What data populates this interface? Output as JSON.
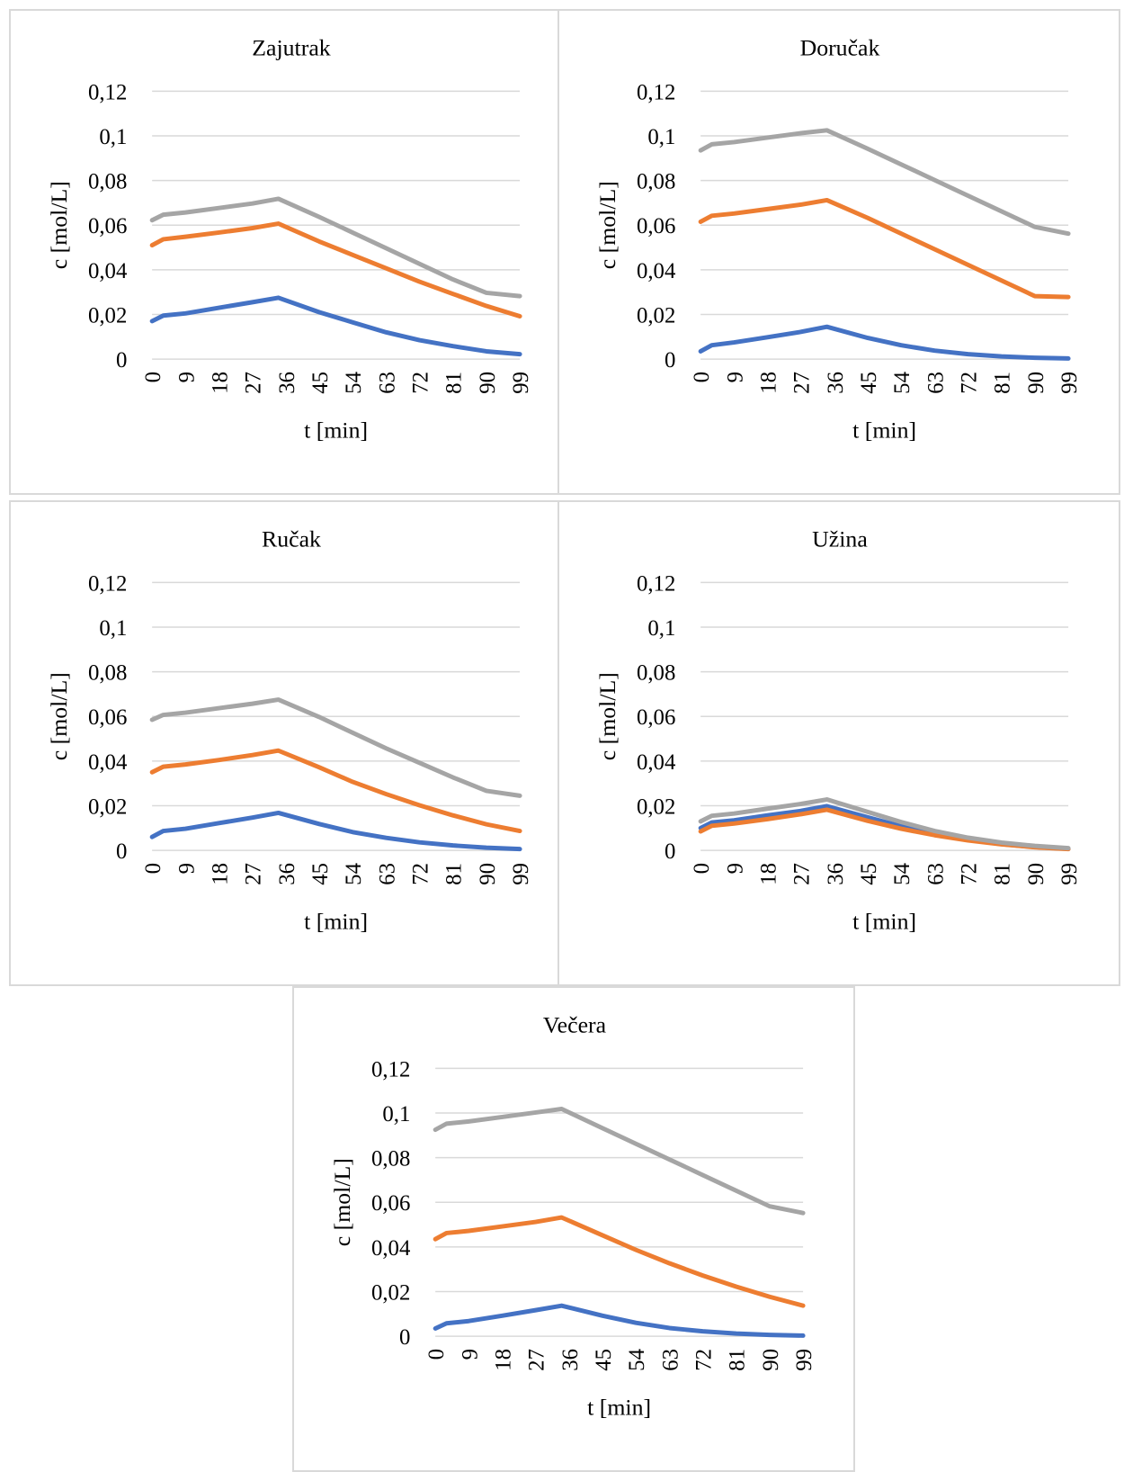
{
  "chart_data": [
    {
      "type": "line",
      "title": "Zajutrak",
      "xlabel": "t [min]",
      "ylabel": "c [mol/L]",
      "ylim": [
        0,
        0.12
      ],
      "yticks": [
        "0",
        "0,02",
        "0,04",
        "0,06",
        "0,08",
        "0,1",
        "0,12"
      ],
      "xticks": [
        "0",
        "9",
        "18",
        "27",
        "36",
        "45",
        "54",
        "63",
        "72",
        "81",
        "90",
        "99"
      ],
      "grid": true,
      "legend": "none",
      "series": [
        {
          "color": "#4472c4",
          "points": [
            [
              0,
              0.017
            ],
            [
              3,
              0.0195
            ],
            [
              9,
              0.0205
            ],
            [
              18,
              0.023
            ],
            [
              27,
              0.0255
            ],
            [
              34,
              0.0275
            ],
            [
              45,
              0.021
            ],
            [
              54,
              0.0165
            ],
            [
              63,
              0.012
            ],
            [
              72,
              0.0085
            ],
            [
              81,
              0.0058
            ],
            [
              90,
              0.0035
            ],
            [
              99,
              0.0022
            ]
          ]
        },
        {
          "color": "#ed7d31",
          "points": [
            [
              0,
              0.051
            ],
            [
              3,
              0.0537
            ],
            [
              9,
              0.0548
            ],
            [
              18,
              0.0567
            ],
            [
              27,
              0.0587
            ],
            [
              34,
              0.0607
            ],
            [
              45,
              0.0527
            ],
            [
              54,
              0.0467
            ],
            [
              63,
              0.0407
            ],
            [
              72,
              0.0347
            ],
            [
              81,
              0.0292
            ],
            [
              90,
              0.0238
            ],
            [
              99,
              0.0192
            ]
          ]
        },
        {
          "color": "#a5a5a5",
          "points": [
            [
              0,
              0.0622
            ],
            [
              3,
              0.0647
            ],
            [
              9,
              0.0657
            ],
            [
              18,
              0.0677
            ],
            [
              27,
              0.0697
            ],
            [
              34,
              0.0718
            ],
            [
              45,
              0.0637
            ],
            [
              54,
              0.0567
            ],
            [
              63,
              0.0497
            ],
            [
              72,
              0.0427
            ],
            [
              81,
              0.0357
            ],
            [
              90,
              0.0297
            ],
            [
              99,
              0.0282
            ]
          ]
        }
      ]
    },
    {
      "type": "line",
      "title": "Doručak",
      "xlabel": "t [min]",
      "ylabel": "c [mol/L]",
      "ylim": [
        0,
        0.12
      ],
      "yticks": [
        "0",
        "0,02",
        "0,04",
        "0,06",
        "0,08",
        "0,1",
        "0,12"
      ],
      "xticks": [
        "0",
        "9",
        "18",
        "27",
        "36",
        "45",
        "54",
        "63",
        "72",
        "81",
        "90",
        "99"
      ],
      "grid": true,
      "legend": "none",
      "series": [
        {
          "color": "#4472c4",
          "points": [
            [
              0,
              0.0035
            ],
            [
              3,
              0.0062
            ],
            [
              9,
              0.0075
            ],
            [
              18,
              0.0098
            ],
            [
              27,
              0.0122
            ],
            [
              34,
              0.0145
            ],
            [
              45,
              0.0095
            ],
            [
              54,
              0.0062
            ],
            [
              63,
              0.0038
            ],
            [
              72,
              0.0022
            ],
            [
              81,
              0.0012
            ],
            [
              90,
              0.0006
            ],
            [
              99,
              0.0003
            ]
          ]
        },
        {
          "color": "#ed7d31",
          "points": [
            [
              0,
              0.0615
            ],
            [
              3,
              0.0642
            ],
            [
              9,
              0.0652
            ],
            [
              18,
              0.0672
            ],
            [
              27,
              0.0692
            ],
            [
              34,
              0.0712
            ],
            [
              45,
              0.0632
            ],
            [
              54,
              0.0562
            ],
            [
              63,
              0.0492
            ],
            [
              72,
              0.0422
            ],
            [
              81,
              0.0352
            ],
            [
              90,
              0.0282
            ],
            [
              99,
              0.0278
            ]
          ]
        },
        {
          "color": "#a5a5a5",
          "points": [
            [
              0,
              0.0935
            ],
            [
              3,
              0.0962
            ],
            [
              9,
              0.0972
            ],
            [
              18,
              0.0992
            ],
            [
              27,
              0.1012
            ],
            [
              34,
              0.1025
            ],
            [
              45,
              0.0942
            ],
            [
              54,
              0.0872
            ],
            [
              63,
              0.0802
            ],
            [
              72,
              0.0732
            ],
            [
              81,
              0.0662
            ],
            [
              90,
              0.0592
            ],
            [
              99,
              0.0562
            ]
          ]
        }
      ]
    },
    {
      "type": "line",
      "title": "Ručak",
      "xlabel": "t [min]",
      "ylabel": "c [mol/L]",
      "ylim": [
        0,
        0.12
      ],
      "yticks": [
        "0",
        "0,02",
        "0,04",
        "0,06",
        "0,08",
        "0,1",
        "0,12"
      ],
      "xticks": [
        "0",
        "9",
        "18",
        "27",
        "36",
        "45",
        "54",
        "63",
        "72",
        "81",
        "90",
        "99"
      ],
      "grid": true,
      "legend": "none",
      "series": [
        {
          "color": "#4472c4",
          "points": [
            [
              0,
              0.006
            ],
            [
              3,
              0.0087
            ],
            [
              9,
              0.0097
            ],
            [
              18,
              0.0122
            ],
            [
              27,
              0.0147
            ],
            [
              34,
              0.0168
            ],
            [
              45,
              0.0118
            ],
            [
              54,
              0.0082
            ],
            [
              63,
              0.0056
            ],
            [
              72,
              0.0036
            ],
            [
              81,
              0.0022
            ],
            [
              90,
              0.0012
            ],
            [
              99,
              0.0006
            ]
          ]
        },
        {
          "color": "#ed7d31",
          "points": [
            [
              0,
              0.035
            ],
            [
              3,
              0.0375
            ],
            [
              9,
              0.0385
            ],
            [
              18,
              0.0405
            ],
            [
              27,
              0.0427
            ],
            [
              34,
              0.0447
            ],
            [
              45,
              0.0372
            ],
            [
              54,
              0.0307
            ],
            [
              63,
              0.0252
            ],
            [
              72,
              0.0202
            ],
            [
              81,
              0.0157
            ],
            [
              90,
              0.0117
            ],
            [
              99,
              0.0087
            ]
          ]
        },
        {
          "color": "#a5a5a5",
          "points": [
            [
              0,
              0.0585
            ],
            [
              3,
              0.0607
            ],
            [
              9,
              0.0617
            ],
            [
              18,
              0.0637
            ],
            [
              27,
              0.0657
            ],
            [
              34,
              0.0675
            ],
            [
              45,
              0.0597
            ],
            [
              54,
              0.0527
            ],
            [
              63,
              0.0457
            ],
            [
              72,
              0.0392
            ],
            [
              81,
              0.0327
            ],
            [
              90,
              0.0267
            ],
            [
              99,
              0.0245
            ]
          ]
        }
      ]
    },
    {
      "type": "line",
      "title": "Užina",
      "xlabel": "t [min]",
      "ylabel": "c [mol/L]",
      "ylim": [
        0,
        0.12
      ],
      "yticks": [
        "0",
        "0,02",
        "0,04",
        "0,06",
        "0,08",
        "0,1",
        "0,12"
      ],
      "xticks": [
        "0",
        "9",
        "18",
        "27",
        "36",
        "45",
        "54",
        "63",
        "72",
        "81",
        "90",
        "99"
      ],
      "grid": true,
      "legend": "none",
      "series": [
        {
          "color": "#4472c4",
          "points": [
            [
              0,
              0.01
            ],
            [
              3,
              0.0125
            ],
            [
              9,
              0.0135
            ],
            [
              18,
              0.0157
            ],
            [
              27,
              0.0177
            ],
            [
              34,
              0.0198
            ],
            [
              45,
              0.0148
            ],
            [
              54,
              0.0108
            ],
            [
              63,
              0.0074
            ],
            [
              72,
              0.0048
            ],
            [
              81,
              0.0028
            ],
            [
              90,
              0.0015
            ],
            [
              99,
              0.0007
            ]
          ]
        },
        {
          "color": "#ed7d31",
          "points": [
            [
              0,
              0.0085
            ],
            [
              3,
              0.011
            ],
            [
              9,
              0.012
            ],
            [
              18,
              0.014
            ],
            [
              27,
              0.0162
            ],
            [
              34,
              0.0182
            ],
            [
              45,
              0.0132
            ],
            [
              54,
              0.0097
            ],
            [
              63,
              0.0068
            ],
            [
              72,
              0.0045
            ],
            [
              81,
              0.0027
            ],
            [
              90,
              0.0014
            ],
            [
              99,
              0.0006
            ]
          ]
        },
        {
          "color": "#a5a5a5",
          "points": [
            [
              0,
              0.013
            ],
            [
              3,
              0.0155
            ],
            [
              9,
              0.0165
            ],
            [
              18,
              0.0187
            ],
            [
              27,
              0.0208
            ],
            [
              34,
              0.0228
            ],
            [
              45,
              0.0172
            ],
            [
              54,
              0.0127
            ],
            [
              63,
              0.0087
            ],
            [
              72,
              0.0057
            ],
            [
              81,
              0.0035
            ],
            [
              90,
              0.002
            ],
            [
              99,
              0.001
            ]
          ]
        }
      ]
    },
    {
      "type": "line",
      "title": "Večera",
      "xlabel": "t [min]",
      "ylabel": "c [mol/L]",
      "ylim": [
        0,
        0.12
      ],
      "yticks": [
        "0",
        "0,02",
        "0,04",
        "0,06",
        "0,08",
        "0,1",
        "0,12"
      ],
      "xticks": [
        "0",
        "9",
        "18",
        "27",
        "36",
        "45",
        "54",
        "63",
        "72",
        "81",
        "90",
        "99"
      ],
      "grid": true,
      "legend": "none",
      "series": [
        {
          "color": "#4472c4",
          "points": [
            [
              0,
              0.0035
            ],
            [
              3,
              0.0058
            ],
            [
              9,
              0.0068
            ],
            [
              18,
              0.0092
            ],
            [
              27,
              0.0117
            ],
            [
              34,
              0.0137
            ],
            [
              45,
              0.0092
            ],
            [
              54,
              0.006
            ],
            [
              63,
              0.0037
            ],
            [
              72,
              0.0022
            ],
            [
              81,
              0.0012
            ],
            [
              90,
              0.0006
            ],
            [
              99,
              0.0003
            ]
          ]
        },
        {
          "color": "#ed7d31",
          "points": [
            [
              0,
              0.0435
            ],
            [
              3,
              0.0462
            ],
            [
              9,
              0.0472
            ],
            [
              18,
              0.0492
            ],
            [
              27,
              0.0512
            ],
            [
              34,
              0.0532
            ],
            [
              45,
              0.0452
            ],
            [
              54,
              0.0387
            ],
            [
              63,
              0.0327
            ],
            [
              72,
              0.0272
            ],
            [
              81,
              0.0222
            ],
            [
              90,
              0.0177
            ],
            [
              99,
              0.0137
            ]
          ]
        },
        {
          "color": "#a5a5a5",
          "points": [
            [
              0,
              0.0925
            ],
            [
              3,
              0.0952
            ],
            [
              9,
              0.0962
            ],
            [
              18,
              0.0982
            ],
            [
              27,
              0.1002
            ],
            [
              34,
              0.1018
            ],
            [
              45,
              0.0932
            ],
            [
              54,
              0.0862
            ],
            [
              63,
              0.0792
            ],
            [
              72,
              0.0722
            ],
            [
              81,
              0.0652
            ],
            [
              90,
              0.0582
            ],
            [
              99,
              0.0552
            ]
          ]
        }
      ]
    }
  ]
}
